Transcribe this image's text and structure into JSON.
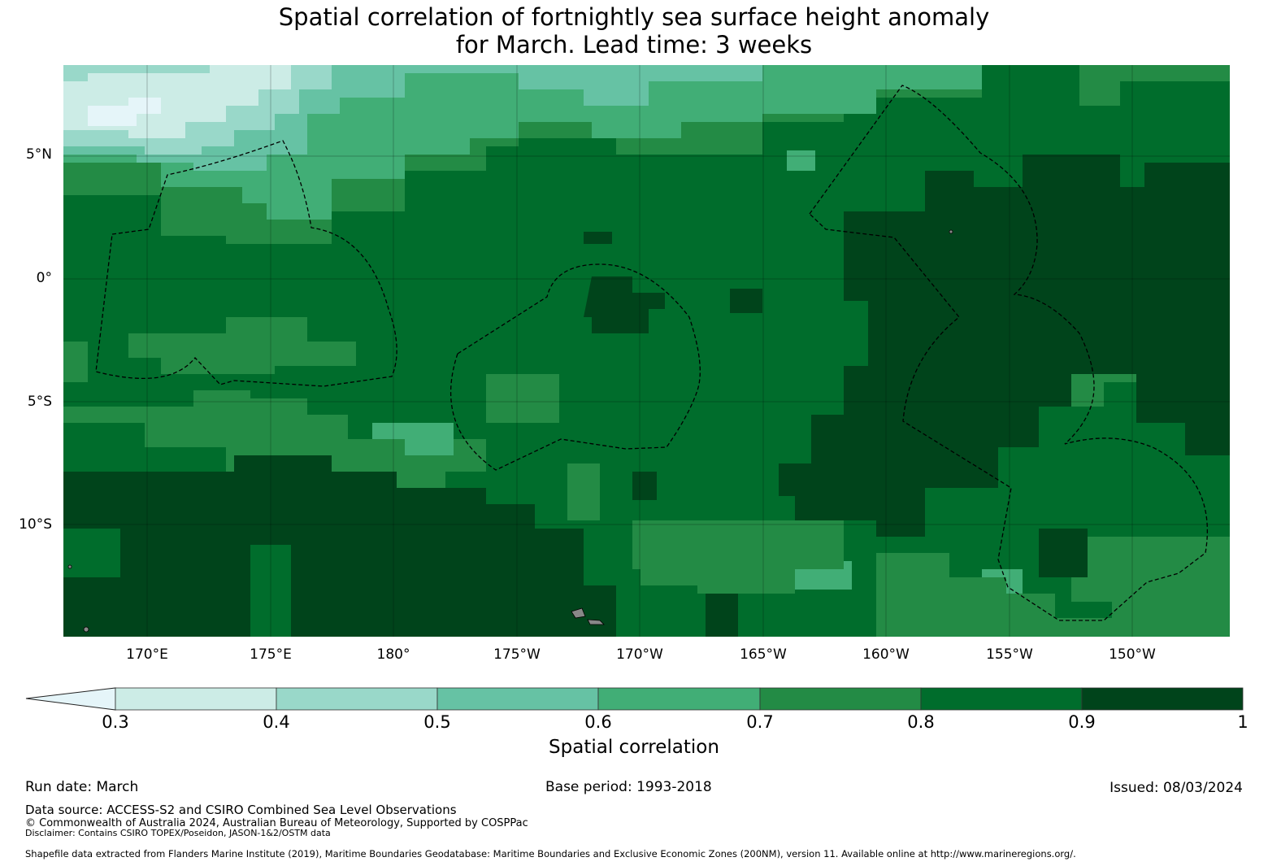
{
  "title": {
    "line1": "Spatial correlation of fortnightly sea surface height anomaly",
    "line2": "for March. Lead time: 3 weeks"
  },
  "map": {
    "lat_labels": [
      "5°N",
      "0°",
      "5°S",
      "10°S"
    ],
    "lon_labels": [
      "170°E",
      "175°E",
      "180°",
      "175°W",
      "170°W",
      "165°W",
      "160°W",
      "155°W",
      "150°W"
    ]
  },
  "colorbar": {
    "label": "Spatial correlation",
    "ticks": [
      "0.3",
      "0.4",
      "0.5",
      "0.6",
      "0.7",
      "0.8",
      "0.9",
      "1"
    ],
    "colors": {
      "below_0.3": "#e5f5f9",
      "0.3-0.4": "#ccece6",
      "0.4-0.5": "#99d8c9",
      "0.5-0.6": "#66c2a4",
      "0.6-0.7": "#41ae76",
      "0.7-0.8": "#238b45",
      "0.8-0.9": "#006d2c",
      "0.9-1": "#00441b"
    }
  },
  "footer": {
    "run_date": "Run date: March",
    "base_period": "Base period: 1993-2018",
    "issued": "Issued: 08/03/2024",
    "data_source": "Data source: ACCESS-S2 and CSIRO Combined Sea Level Observations",
    "copyright": "© Commonwealth of Australia 2024, Australian Bureau of Meteorology, Supported by COSPPac",
    "disclaimer": "Disclaimer: Contains CSIRO TOPEX/Poseidon, JASON-1&2/OSTM data",
    "shapefile": "Shapefile data extracted from Flanders Marine Institute (2019), Maritime Boundaries Geodatabase: Maritime Boundaries and Exclusive Economic Zones (200NM), version 11. Available online at http://www.marineregions.org/."
  }
}
